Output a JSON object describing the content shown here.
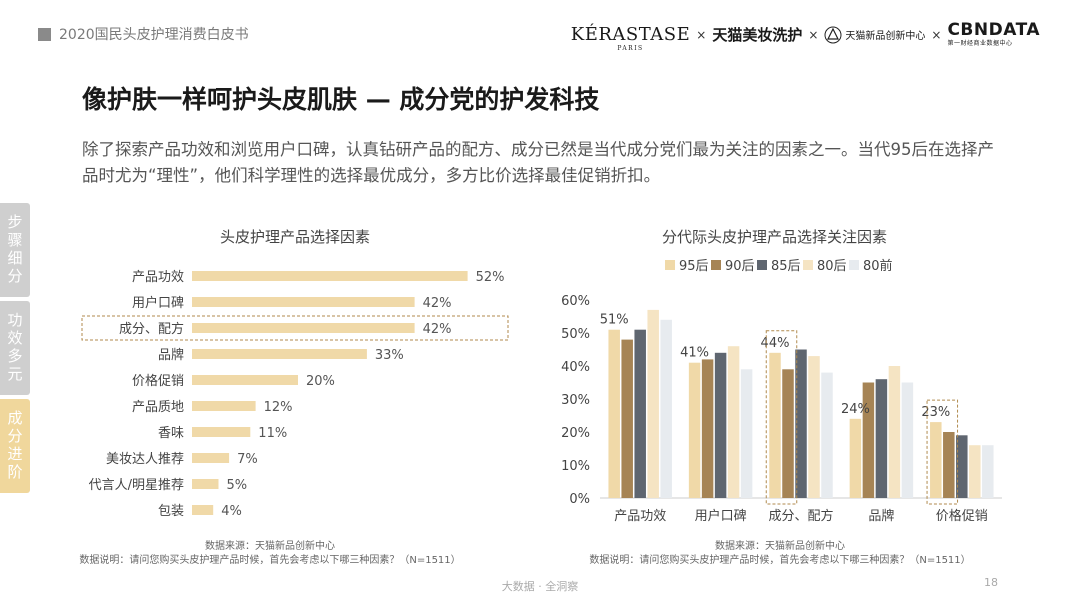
{
  "header": {
    "report_title": "2020国民头皮护理消费白皮书",
    "brands": {
      "kerastase": "KÉRASTASE",
      "kerastase_sub": "PARIS",
      "tmall": "天猫美妆洗护",
      "center": "天猫新品创新中心",
      "cbndata": "CBNDATA",
      "cbndata_sub": "第一财经商业数据中心",
      "separator": "×"
    }
  },
  "title": "像护肤一样呵护头皮肌肤 — 成分党的护发科技",
  "intro": "除了探索产品功效和浏览用户口碑，认真钻研产品的配方、成分已然是当代成分党们最为关注的因素之一。当代95后在选择产品时尤为“理性”，他们科学理性的选择最优成分，多方比价选择最佳促销折扣。",
  "side_nav": [
    "步骤细分",
    "功效多元",
    "成分进阶"
  ],
  "left_note": {
    "source": "数据来源：天猫新品创新中心",
    "desc": "数据说明：请问您购买头皮护理产品时候，首先会考虑以下哪三种因素？（N=1511）"
  },
  "right_note": {
    "source": "数据来源：天猫新品创新中心",
    "desc": "数据说明：请问您购买头皮护理产品时候，首先会考虑以下哪三种因素？（N=1511）"
  },
  "footer": {
    "center": "大数据 · 全洞察",
    "page": "18"
  },
  "colors": {
    "bar": "#f0d9a8",
    "highlight_border": "#b08a4e",
    "axis": "#cccccc",
    "series": [
      "#f0d9a8",
      "#a68455",
      "#5f6670",
      "#f5e4c3",
      "#e7ebef"
    ]
  },
  "chart_data": [
    {
      "type": "bar",
      "orientation": "horizontal",
      "title": "头皮护理产品选择因素",
      "categories": [
        "产品功效",
        "用户口碑",
        "成分、配方",
        "品牌",
        "价格促销",
        "产品质地",
        "香味",
        "美妆达人推荐",
        "代言人/明星推荐",
        "包装"
      ],
      "values": [
        52,
        42,
        42,
        33,
        20,
        12,
        11,
        7,
        5,
        4
      ],
      "value_labels": [
        "52%",
        "42%",
        "42%",
        "33%",
        "20%",
        "12%",
        "11%",
        "7%",
        "5%",
        "4%"
      ],
      "highlight_category": "成分、配方",
      "xlim": [
        0,
        100
      ]
    },
    {
      "type": "bar",
      "title": "分代际头皮护理产品选择关注因素",
      "categories": [
        "产品功效",
        "用户口碑",
        "成分、配方",
        "品牌",
        "价格促销"
      ],
      "series": [
        {
          "name": "95后",
          "values": [
            51,
            41,
            44,
            24,
            23
          ]
        },
        {
          "name": "90后",
          "values": [
            48,
            42,
            39,
            35,
            20
          ]
        },
        {
          "name": "85后",
          "values": [
            51,
            44,
            45,
            36,
            19
          ]
        },
        {
          "name": "80后",
          "values": [
            57,
            46,
            43,
            40,
            16
          ]
        },
        {
          "name": "80前",
          "values": [
            54,
            39,
            38,
            35,
            16
          ]
        }
      ],
      "annotations": [
        "51%",
        "41%",
        "44%",
        "24%",
        "23%"
      ],
      "highlight_categories": [
        "成分、配方",
        "价格促销"
      ],
      "yticks": [
        "0%",
        "10%",
        "20%",
        "30%",
        "40%",
        "50%",
        "60%"
      ],
      "ylim": [
        0,
        60
      ]
    }
  ]
}
